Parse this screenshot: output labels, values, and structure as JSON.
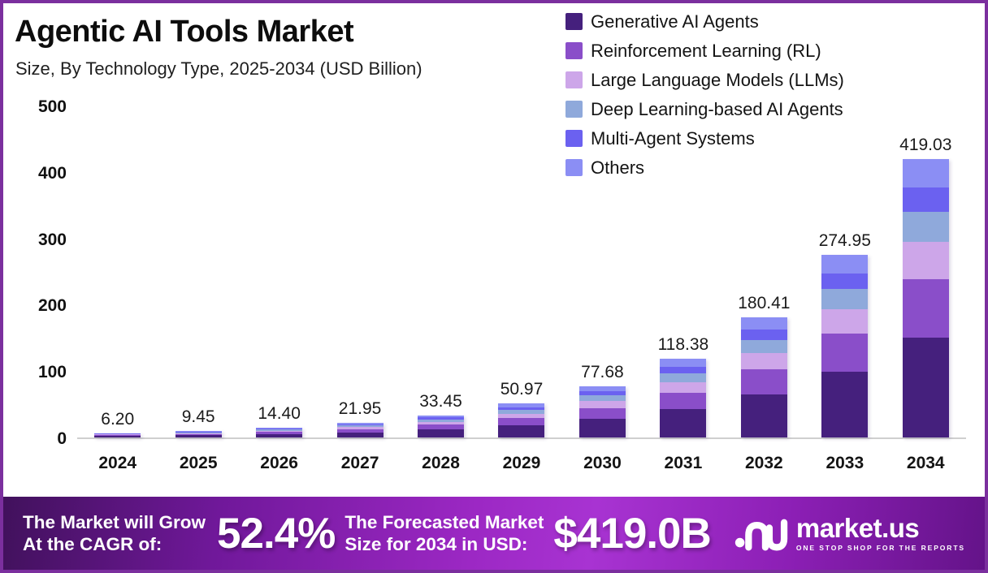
{
  "frame": {
    "border_color": "#7b2f9e"
  },
  "header": {
    "title": "Agentic AI Tools Market",
    "subtitle": "Size, By Technology Type, 2025-2034 (USD Billion)"
  },
  "chart_data": {
    "type": "bar",
    "stacked": true,
    "title": "Agentic AI Tools Market Size, By Technology Type, 2025-2034 (USD Billion)",
    "xlabel": "",
    "ylabel": "USD Billion",
    "ylim": [
      0,
      500
    ],
    "yticks": [
      0,
      100,
      200,
      300,
      400,
      500
    ],
    "grid": false,
    "legend_position": "top-right",
    "categories": [
      "2024",
      "2025",
      "2026",
      "2027",
      "2028",
      "2029",
      "2030",
      "2031",
      "2032",
      "2033",
      "2034"
    ],
    "totals": [
      6.2,
      9.45,
      14.4,
      21.95,
      33.45,
      50.97,
      77.68,
      118.38,
      180.41,
      274.95,
      419.03
    ],
    "series": [
      {
        "name": "Generative AI Agents",
        "color": "#45207d",
        "values": [
          2.23,
          3.4,
          5.18,
          7.9,
          12.04,
          18.35,
          27.96,
          42.62,
          64.95,
          98.98,
          150.85
        ]
      },
      {
        "name": "Reinforcement Learning (RL)",
        "color": "#8a4ec9",
        "values": [
          1.3,
          1.98,
          3.01,
          4.59,
          6.99,
          10.65,
          16.24,
          24.74,
          37.71,
          57.46,
          87.58
        ]
      },
      {
        "name": "Large Language Models (LLMs)",
        "color": "#cda6e9",
        "values": [
          0.82,
          1.26,
          1.92,
          2.92,
          4.45,
          6.78,
          10.33,
          15.74,
          23.99,
          36.57,
          55.73
        ]
      },
      {
        "name": "Deep Learning-based AI Agents",
        "color": "#8fa9db",
        "values": [
          0.68,
          1.04,
          1.58,
          2.41,
          3.68,
          5.61,
          8.54,
          13.02,
          19.85,
          30.24,
          46.09
        ]
      },
      {
        "name": "Multi-Agent Systems",
        "color": "#6b61f0",
        "values": [
          0.55,
          0.83,
          1.27,
          1.93,
          2.94,
          4.48,
          6.84,
          10.42,
          15.88,
          24.2,
          36.87
        ]
      },
      {
        "name": "Others",
        "color": "#8b8ef4",
        "values": [
          0.62,
          0.94,
          1.44,
          2.2,
          3.35,
          5.1,
          7.77,
          11.84,
          18.03,
          27.5,
          41.91
        ]
      }
    ]
  },
  "banner": {
    "cagr_label_line1": "The Market will Grow",
    "cagr_label_line2": "At the CAGR of:",
    "cagr_value": "52.4%",
    "forecast_label_line1": "The Forecasted Market",
    "forecast_label_line2": "Size for 2034 in USD:",
    "forecast_value": "$419.0B",
    "brand_name": "market.us",
    "brand_tagline": "ONE STOP SHOP FOR THE REPORTS"
  }
}
